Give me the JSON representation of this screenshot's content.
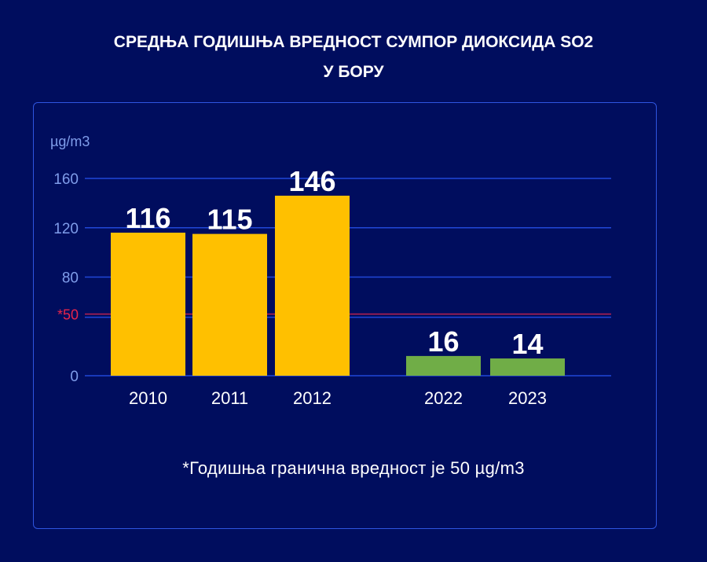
{
  "title_line1": "СРЕДЊА ГОДИШЊА ВРЕДНОСТ СУМПОР ДИОКСИДА SO2",
  "title_line2": "У БОРУ",
  "footnote": "*Годишња гранична вредност је 50 µg/m3",
  "colors": {
    "background": "#000d5e",
    "panel_border": "#2e55e0",
    "gridline": "#2147d8",
    "bar_old": "#ffc000",
    "bar_new": "#70ad47",
    "limit_line": "#e8254b",
    "axis_text": "#7f9dea"
  },
  "chart_data": {
    "type": "bar",
    "ylabel": "µg/m3",
    "ylim": [
      0,
      160
    ],
    "yticks": [
      {
        "value": 0,
        "label": "0"
      },
      {
        "value": 50,
        "label": "*50"
      },
      {
        "value": 80,
        "label": "80"
      },
      {
        "value": 120,
        "label": "120"
      },
      {
        "value": 160,
        "label": "160"
      }
    ],
    "categories": [
      "2010",
      "2011",
      "2012",
      "2022",
      "2023"
    ],
    "values": [
      116,
      115,
      146,
      16,
      14
    ],
    "value_labels": [
      "116",
      "115",
      "146",
      "16",
      "14"
    ],
    "bar_colors": [
      "#ffc000",
      "#ffc000",
      "#ffc000",
      "#70ad47",
      "#70ad47"
    ],
    "reference_line": {
      "value": 50,
      "label": "*50"
    },
    "grid": true,
    "legend": "none"
  }
}
